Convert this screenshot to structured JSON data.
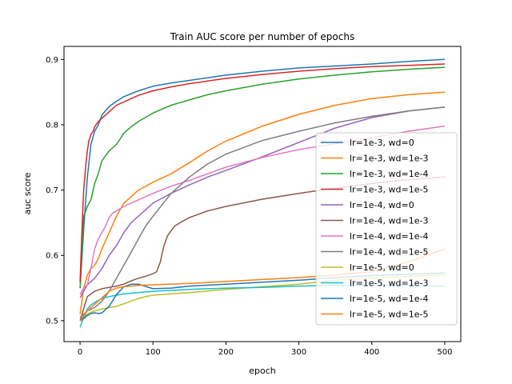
{
  "chart_data": {
    "type": "line",
    "title": "Train AUC score per number of epochs",
    "xlabel": "epoch",
    "ylabel": "auc score",
    "xlim": [
      -22,
      522
    ],
    "ylim": [
      0.468,
      0.92
    ],
    "xticks": [
      0,
      100,
      200,
      300,
      400,
      500
    ],
    "yticks": [
      0.5,
      0.6,
      0.7,
      0.8,
      0.9
    ],
    "xtick_labels": [
      "0",
      "100",
      "200",
      "300",
      "400",
      "500"
    ],
    "ytick_labels": [
      "0.5",
      "0.6",
      "0.7",
      "0.8",
      "0.9"
    ],
    "grid": false,
    "legend_position": "right",
    "series": [
      {
        "name": "lr=1e-3, wd=0",
        "color": "#1f77b4",
        "x": [
          0,
          5,
          10,
          15,
          20,
          25,
          30,
          40,
          50,
          60,
          80,
          100,
          125,
          150,
          175,
          200,
          250,
          300,
          350,
          400,
          450,
          500
        ],
        "y": [
          0.55,
          0.64,
          0.72,
          0.77,
          0.79,
          0.8,
          0.815,
          0.828,
          0.836,
          0.843,
          0.852,
          0.859,
          0.864,
          0.868,
          0.872,
          0.876,
          0.882,
          0.887,
          0.89,
          0.893,
          0.897,
          0.9
        ]
      },
      {
        "name": "lr=1e-3, wd=1e-3",
        "color": "#ff7f0e",
        "x": [
          0,
          5,
          10,
          15,
          20,
          25,
          30,
          40,
          50,
          60,
          70,
          80,
          100,
          125,
          150,
          175,
          200,
          250,
          300,
          350,
          400,
          450,
          500
        ],
        "y": [
          0.51,
          0.55,
          0.57,
          0.58,
          0.585,
          0.595,
          0.61,
          0.635,
          0.66,
          0.68,
          0.69,
          0.7,
          0.712,
          0.725,
          0.742,
          0.76,
          0.775,
          0.798,
          0.816,
          0.83,
          0.84,
          0.846,
          0.85
        ]
      },
      {
        "name": "lr=1e-3, wd=1e-4",
        "color": "#2ca02c",
        "x": [
          0,
          3,
          5,
          10,
          15,
          20,
          25,
          30,
          40,
          50,
          60,
          70,
          80,
          100,
          125,
          150,
          175,
          200,
          250,
          300,
          350,
          400,
          450,
          500
        ],
        "y": [
          0.55,
          0.62,
          0.66,
          0.675,
          0.685,
          0.71,
          0.725,
          0.745,
          0.76,
          0.77,
          0.787,
          0.797,
          0.805,
          0.818,
          0.83,
          0.838,
          0.846,
          0.852,
          0.862,
          0.87,
          0.876,
          0.881,
          0.885,
          0.888
        ]
      },
      {
        "name": "lr=1e-3, wd=1e-5",
        "color": "#d62728",
        "x": [
          0,
          3,
          5,
          8,
          10,
          12,
          15,
          18,
          20,
          25,
          30,
          40,
          50,
          60,
          80,
          100,
          125,
          150,
          175,
          200,
          250,
          300,
          350,
          400,
          450,
          500
        ],
        "y": [
          0.56,
          0.65,
          0.7,
          0.74,
          0.76,
          0.775,
          0.785,
          0.79,
          0.797,
          0.805,
          0.81,
          0.82,
          0.83,
          0.835,
          0.845,
          0.852,
          0.858,
          0.863,
          0.867,
          0.871,
          0.877,
          0.882,
          0.886,
          0.889,
          0.891,
          0.893
        ]
      },
      {
        "name": "lr=1e-4, wd=0",
        "color": "#9467bd",
        "x": [
          0,
          5,
          10,
          15,
          20,
          30,
          40,
          50,
          60,
          70,
          80,
          100,
          125,
          150,
          175,
          200,
          250,
          300,
          350,
          400,
          450,
          500
        ],
        "y": [
          0.535,
          0.545,
          0.555,
          0.56,
          0.565,
          0.58,
          0.6,
          0.615,
          0.635,
          0.65,
          0.66,
          0.68,
          0.695,
          0.708,
          0.72,
          0.73,
          0.751,
          0.773,
          0.795,
          0.811,
          0.821,
          0.827
        ]
      },
      {
        "name": "lr=1e-4, wd=1e-3",
        "color": "#8c564b",
        "x": [
          0,
          10,
          20,
          30,
          40,
          50,
          60,
          70,
          80,
          90,
          100,
          105,
          110,
          115,
          120,
          125,
          130,
          140,
          150,
          175,
          200,
          250,
          300,
          350,
          400,
          450,
          500
        ],
        "y": [
          0.5,
          0.537,
          0.545,
          0.549,
          0.551,
          0.553,
          0.556,
          0.561,
          0.565,
          0.568,
          0.572,
          0.575,
          0.59,
          0.615,
          0.63,
          0.638,
          0.645,
          0.652,
          0.658,
          0.668,
          0.675,
          0.686,
          0.695,
          0.703,
          0.71,
          0.716,
          0.72
        ]
      },
      {
        "name": "lr=1e-4, wd=1e-4",
        "color": "#e377c2",
        "x": [
          0,
          5,
          10,
          15,
          20,
          25,
          30,
          35,
          40,
          45,
          50,
          60,
          70,
          80,
          100,
          125,
          150,
          175,
          200,
          250,
          300,
          350,
          400,
          450,
          500
        ],
        "y": [
          0.54,
          0.55,
          0.555,
          0.58,
          0.61,
          0.625,
          0.635,
          0.645,
          0.658,
          0.665,
          0.668,
          0.675,
          0.68,
          0.685,
          0.695,
          0.706,
          0.715,
          0.725,
          0.735,
          0.75,
          0.762,
          0.771,
          0.78,
          0.79,
          0.798
        ]
      },
      {
        "name": "lr=1e-4, wd=1e-5",
        "color": "#7f7f7f",
        "x": [
          0,
          10,
          20,
          30,
          40,
          50,
          60,
          70,
          80,
          90,
          100,
          125,
          150,
          175,
          200,
          250,
          300,
          350,
          400,
          450,
          500
        ],
        "y": [
          0.505,
          0.515,
          0.52,
          0.53,
          0.545,
          0.565,
          0.585,
          0.605,
          0.625,
          0.645,
          0.66,
          0.695,
          0.72,
          0.74,
          0.755,
          0.776,
          0.79,
          0.803,
          0.813,
          0.821,
          0.827
        ]
      },
      {
        "name": "lr=1e-5, wd=0",
        "color": "#bcbd22",
        "x": [
          0,
          10,
          20,
          30,
          40,
          50,
          60,
          70,
          80,
          90,
          100,
          125,
          150,
          200,
          250,
          300,
          350,
          400,
          450,
          500
        ],
        "y": [
          0.5,
          0.51,
          0.515,
          0.518,
          0.52,
          0.522,
          0.526,
          0.53,
          0.534,
          0.537,
          0.539,
          0.541,
          0.543,
          0.548,
          0.552,
          0.556,
          0.562,
          0.565,
          0.568,
          0.57
        ]
      },
      {
        "name": "lr=1e-5, wd=1e-3",
        "color": "#17becf",
        "x": [
          0,
          5,
          10,
          15,
          20,
          25,
          30,
          40,
          50,
          60,
          80,
          100,
          150,
          200,
          250,
          300,
          350,
          400,
          450,
          500
        ],
        "y": [
          0.49,
          0.505,
          0.518,
          0.524,
          0.528,
          0.531,
          0.534,
          0.537,
          0.539,
          0.541,
          0.543,
          0.545,
          0.548,
          0.55,
          0.551,
          0.553,
          0.554,
          0.554,
          0.554,
          0.553
        ]
      },
      {
        "name": "lr=1e-5, wd=1e-4",
        "color": "#1f77b4",
        "x": [
          0,
          5,
          10,
          15,
          20,
          25,
          30,
          40,
          50,
          60,
          70,
          80,
          100,
          125,
          150,
          200,
          250,
          300,
          350,
          400,
          450,
          500
        ],
        "y": [
          0.5,
          0.503,
          0.508,
          0.511,
          0.512,
          0.511,
          0.512,
          0.522,
          0.54,
          0.552,
          0.556,
          0.556,
          0.549,
          0.55,
          0.553,
          0.556,
          0.559,
          0.562,
          0.566,
          0.569,
          0.571,
          0.573
        ]
      },
      {
        "name": "lr=1e-5, wd=1e-5",
        "color": "#ff7f0e",
        "x": [
          0,
          10,
          20,
          30,
          40,
          50,
          60,
          80,
          100,
          150,
          200,
          250,
          300,
          350,
          400,
          450,
          500
        ],
        "y": [
          0.5,
          0.515,
          0.525,
          0.535,
          0.545,
          0.55,
          0.552,
          0.554,
          0.555,
          0.557,
          0.56,
          0.563,
          0.566,
          0.57,
          0.575,
          0.59,
          0.61
        ]
      }
    ]
  }
}
